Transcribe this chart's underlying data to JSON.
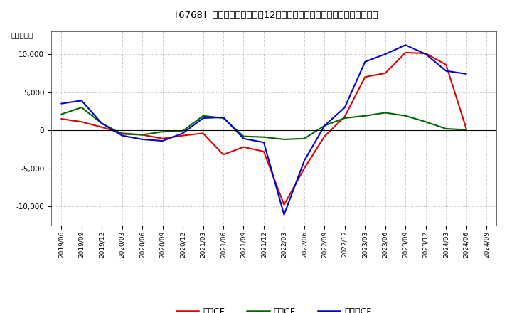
{
  "title": "[6768]  キャッシュフローの12か月移動合計の対前年同期増減額の推移",
  "ylabel": "（百万円）",
  "background_color": "#ffffff",
  "plot_bg_color": "#ffffff",
  "grid_color": "#999999",
  "dates": [
    "2019/06",
    "2019/09",
    "2019/12",
    "2020/03",
    "2020/06",
    "2020/09",
    "2020/12",
    "2021/03",
    "2021/06",
    "2021/09",
    "2021/12",
    "2022/03",
    "2022/06",
    "2022/09",
    "2022/12",
    "2023/03",
    "2023/06",
    "2023/09",
    "2023/12",
    "2024/03",
    "2024/06",
    "2024/09"
  ],
  "operating_cf": [
    1500,
    1100,
    400,
    -400,
    -600,
    -1100,
    -700,
    -400,
    -3200,
    -2200,
    -2800,
    -9800,
    -5000,
    -800,
    1800,
    7000,
    7500,
    10200,
    10100,
    8600,
    200,
    null
  ],
  "investing_cf": [
    2100,
    3000,
    900,
    -500,
    -600,
    -200,
    -100,
    1900,
    1600,
    -800,
    -900,
    -1200,
    -1100,
    600,
    1600,
    1900,
    2300,
    1900,
    1100,
    200,
    50,
    null
  ],
  "free_cf": [
    3500,
    3900,
    900,
    -700,
    -1200,
    -1400,
    -400,
    1600,
    1700,
    -1100,
    -1600,
    -11100,
    -4000,
    600,
    3000,
    9000,
    10000,
    11200,
    10000,
    7800,
    7400,
    null
  ],
  "operating_color": "#dd0000",
  "investing_color": "#006600",
  "free_color": "#0000cc",
  "ylim": [
    -12500,
    13000
  ],
  "yticks": [
    -10000,
    -5000,
    0,
    5000,
    10000
  ],
  "legend_labels": [
    "営業CF",
    "投資CF",
    "フリーCF"
  ]
}
